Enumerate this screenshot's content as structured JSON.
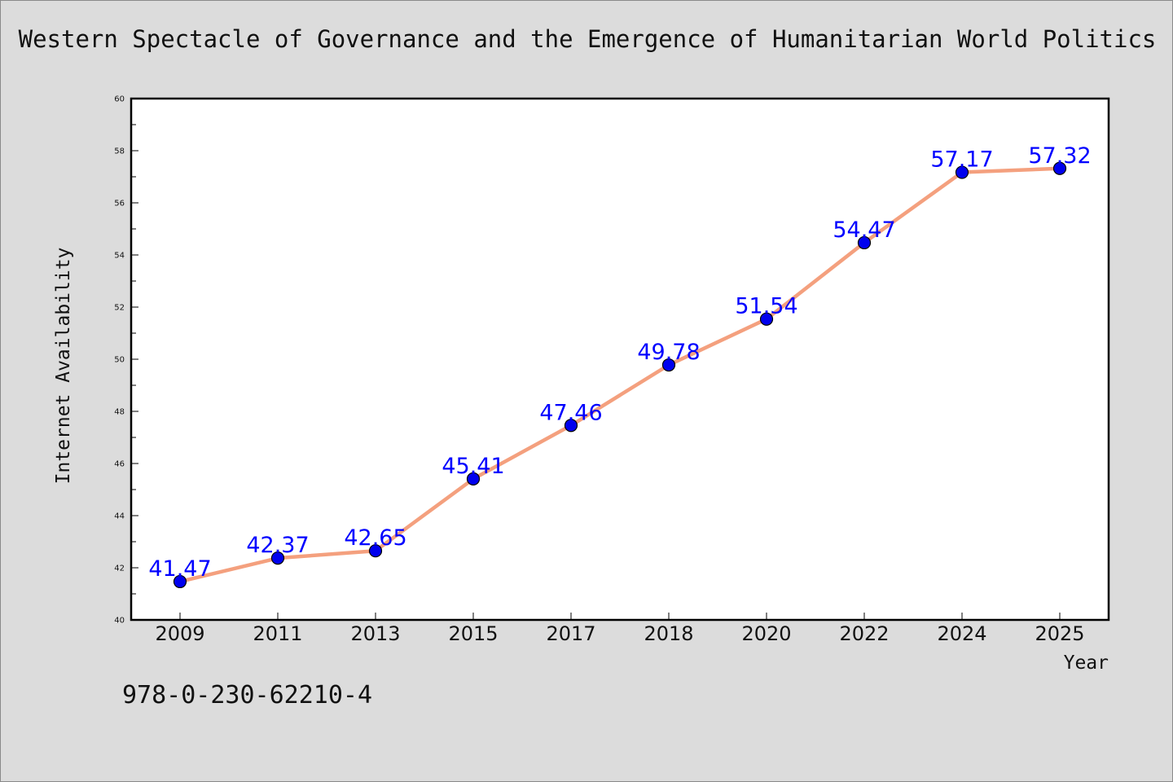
{
  "chart_data": {
    "type": "line",
    "title": "Western Spectacle of Governance and the Emergence of Humanitarian World Politics",
    "xlabel": "Year",
    "ylabel": "Internet Availability",
    "categories": [
      "2009",
      "2011",
      "2013",
      "2015",
      "2017",
      "2018",
      "2020",
      "2022",
      "2024",
      "2025"
    ],
    "values": [
      41.47,
      42.37,
      42.65,
      45.41,
      47.46,
      49.78,
      51.54,
      54.47,
      57.17,
      57.32
    ],
    "data_labels": [
      "41.47",
      "42.37",
      "42.65",
      "45.41",
      "47.46",
      "49.78",
      "51.54",
      "54.47",
      "57.17",
      "57.32"
    ],
    "ylim": [
      40,
      60
    ],
    "yticks": [
      "40",
      "42",
      "44",
      "46",
      "48",
      "50",
      "52",
      "54",
      "56",
      "58",
      "60"
    ],
    "grid": false,
    "legend": "none",
    "line_color": "#f4a07e",
    "marker_color": "#0000ee",
    "label_color": "#0000ff"
  },
  "footer": {
    "code": "978-0-230-62210-4"
  }
}
